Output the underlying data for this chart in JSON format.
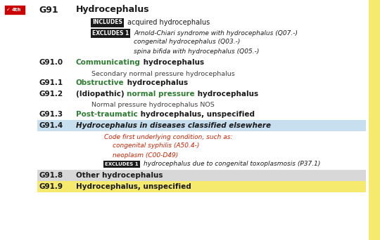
{
  "bg_color": "#ffffff",
  "right_bar_color": "#f5e96e",
  "checkbox_color": "#cc0000",
  "title_code": "G91",
  "title_text": "Hydrocephalus",
  "includes_text": "acquired hydrocephalus",
  "excludes1_lines": [
    "Arnold-Chiari syndrome with hydrocephalus (Q07.-)",
    "congenital hydrocephalus (Q03.-)",
    "spina bifida with hydrocephalus (Q05.-)"
  ],
  "entries": [
    {
      "code": "G91.0",
      "parts": [
        {
          "text": "Communicating",
          "color": "#2e7d32",
          "bold": true,
          "italic": false
        },
        {
          "text": " hydrocephalus",
          "color": "#1a1a1a",
          "bold": true,
          "italic": false
        }
      ],
      "subtext": "Secondary normal pressure hydrocephalus",
      "highlight": null,
      "code_first": null,
      "excludes1_inner": null
    },
    {
      "code": "G91.1",
      "parts": [
        {
          "text": "Obstructive",
          "color": "#2e7d32",
          "bold": true,
          "italic": false
        },
        {
          "text": " hydrocephalus",
          "color": "#1a1a1a",
          "bold": true,
          "italic": false
        }
      ],
      "subtext": null,
      "highlight": null,
      "code_first": null,
      "excludes1_inner": null
    },
    {
      "code": "G91.2",
      "parts": [
        {
          "text": "(Idiopathic) ",
          "color": "#1a1a1a",
          "bold": true,
          "italic": false
        },
        {
          "text": "normal pressure",
          "color": "#2e7d32",
          "bold": true,
          "italic": false
        },
        {
          "text": " hydrocephalus",
          "color": "#1a1a1a",
          "bold": true,
          "italic": false
        }
      ],
      "subtext": "Normal pressure hydrocephalus NOS",
      "highlight": null,
      "code_first": null,
      "excludes1_inner": null
    },
    {
      "code": "G91.3",
      "parts": [
        {
          "text": "Post-traumatic",
          "color": "#2e7d32",
          "bold": true,
          "italic": false
        },
        {
          "text": " hydrocephalus, unspecified",
          "color": "#1a1a1a",
          "bold": true,
          "italic": false
        }
      ],
      "subtext": null,
      "highlight": null,
      "code_first": null,
      "excludes1_inner": null
    },
    {
      "code": "G91.4",
      "parts": [
        {
          "text": "Hydrocephalus in diseases classified elsewhere",
          "color": "#1a1a1a",
          "bold": true,
          "italic": true
        }
      ],
      "subtext": null,
      "highlight": "#c8dff0",
      "code_first": [
        {
          "text": "Code first underlying condition, such as:",
          "indent": 0
        },
        {
          "text": "congenital syphilis (A50.4-)",
          "indent": 1
        },
        {
          "text": "neoplasm (C00-D49)",
          "indent": 1
        }
      ],
      "excludes1_inner": "hydrocephalus due to congenital toxoplasmosis (P37.1)"
    },
    {
      "code": "G91.8",
      "parts": [
        {
          "text": "Other hydrocephalus",
          "color": "#1a1a1a",
          "bold": true,
          "italic": false
        }
      ],
      "subtext": null,
      "highlight": "#d8d8d8",
      "code_first": null,
      "excludes1_inner": null
    },
    {
      "code": "G91.9",
      "parts": [
        {
          "text": "Hydrocephalus, unspecified",
          "color": "#1a1a1a",
          "bold": true,
          "italic": false
        }
      ],
      "subtext": null,
      "highlight": "#f5e96e",
      "code_first": null,
      "excludes1_inner": null
    }
  ]
}
